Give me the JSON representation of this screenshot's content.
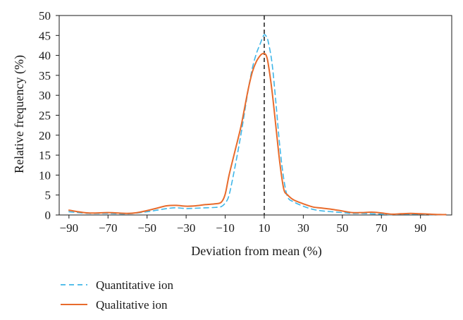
{
  "chart_data": {
    "type": "line",
    "xlabel": "Deviation from mean (%)",
    "ylabel": "Relative frequency (%)",
    "xlim": [
      -95,
      106
    ],
    "ylim": [
      0,
      50
    ],
    "x_ticks": [
      -90,
      -70,
      -50,
      -30,
      -10,
      10,
      30,
      50,
      70,
      90
    ],
    "x_tick_labels": [
      "−90",
      "−70",
      "−50",
      "−30",
      "−10",
      "10",
      "30",
      "50",
      "70",
      "90"
    ],
    "y_ticks": [
      0,
      5,
      10,
      15,
      20,
      25,
      30,
      35,
      40,
      45,
      50
    ],
    "y_tick_labels": [
      "0",
      "5",
      "10",
      "15",
      "20",
      "25",
      "30",
      "35",
      "40",
      "45",
      "50"
    ],
    "reference_line": {
      "x": 10,
      "style": "dashed",
      "color": "#1a1a1a"
    },
    "grid": false,
    "legend_position": "bottom-left",
    "series": [
      {
        "name": "Quantitative ion",
        "style": "dashed",
        "color": "#3fb6e8",
        "x": [
          -90,
          -80,
          -70,
          -60,
          -50,
          -45,
          -40,
          -35,
          -30,
          -25,
          -20,
          -15,
          -12,
          -10,
          -8,
          -5,
          -2,
          0,
          2,
          4,
          6,
          8,
          9,
          10,
          11,
          12,
          14,
          16,
          18,
          20,
          22,
          25,
          30,
          35,
          40,
          45,
          50,
          55,
          60,
          65,
          70,
          75,
          80,
          85,
          90,
          95,
          100,
          103
        ],
        "y": [
          0.8,
          0.4,
          0.4,
          0.3,
          0.8,
          1.2,
          1.6,
          1.8,
          1.6,
          1.7,
          1.8,
          1.9,
          2.1,
          3.0,
          5.0,
          12.0,
          20.0,
          26.0,
          32.0,
          37.0,
          40.5,
          43.0,
          44.3,
          45.2,
          44.8,
          43.5,
          38.0,
          28.0,
          17.0,
          9.0,
          4.5,
          3.3,
          2.2,
          1.4,
          1.0,
          0.8,
          0.6,
          0.4,
          0.4,
          0.3,
          0.2,
          0.1,
          0.2,
          0.2,
          0.2,
          0.1,
          0.1,
          0.1
        ]
      },
      {
        "name": "Qualitative ion",
        "style": "solid",
        "color": "#e86b2c",
        "x": [
          -90,
          -80,
          -70,
          -60,
          -55,
          -50,
          -45,
          -40,
          -35,
          -30,
          -25,
          -20,
          -15,
          -12,
          -10,
          -8,
          -5,
          -2,
          0,
          2,
          4,
          6,
          8,
          9,
          10,
          11,
          12,
          14,
          16,
          18,
          20,
          22,
          25,
          30,
          35,
          40,
          45,
          50,
          55,
          60,
          65,
          70,
          75,
          80,
          85,
          90,
          95,
          100,
          103
        ],
        "y": [
          1.2,
          0.5,
          0.6,
          0.4,
          0.6,
          1.1,
          1.7,
          2.3,
          2.4,
          2.2,
          2.3,
          2.6,
          2.8,
          3.2,
          5.2,
          10.0,
          16.0,
          22.0,
          27.0,
          32.0,
          36.0,
          38.5,
          40.0,
          40.4,
          40.5,
          40.0,
          38.0,
          31.0,
          22.0,
          13.0,
          6.5,
          5.0,
          3.8,
          2.8,
          2.0,
          1.7,
          1.4,
          1.0,
          0.6,
          0.6,
          0.7,
          0.5,
          0.2,
          0.3,
          0.4,
          0.3,
          0.2,
          0.1,
          0.1
        ]
      }
    ]
  }
}
